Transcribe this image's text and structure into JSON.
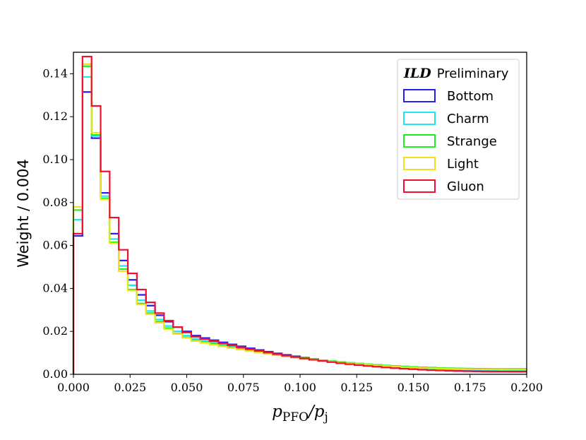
{
  "chart_data": {
    "type": "histogram-step",
    "title": "",
    "xlabel": {
      "main": "p",
      "sub": "PFO",
      "rest": "/p",
      "rest_sub": "j"
    },
    "ylabel": "Weight / 0.004",
    "xlim": [
      0.0,
      0.2
    ],
    "ylim": [
      0.0,
      0.15
    ],
    "bin_width": 0.004,
    "xticks": [
      "0.000",
      "0.025",
      "0.050",
      "0.075",
      "0.100",
      "0.125",
      "0.150",
      "0.175",
      "0.200"
    ],
    "xtick_values": [
      0.0,
      0.025,
      0.05,
      0.075,
      0.1,
      0.125,
      0.15,
      0.175,
      0.2
    ],
    "yticks": [
      "0.00",
      "0.02",
      "0.04",
      "0.06",
      "0.08",
      "0.10",
      "0.12",
      "0.14"
    ],
    "ytick_values": [
      0.0,
      0.02,
      0.04,
      0.06,
      0.08,
      0.1,
      0.12,
      0.14
    ],
    "legend": {
      "title_bold": "ILD",
      "title_rest": "Preliminary",
      "position": "top-right"
    },
    "series": [
      {
        "name": "Bottom",
        "color": "#2a1ee8",
        "head": [
          0.0645,
          0.1315,
          0.11,
          0.0845,
          0.0655,
          0.053,
          0.044,
          0.037,
          0.032,
          0.0275,
          0.0245,
          0.022,
          0.02
        ],
        "tail_start": 0.018,
        "tail_end": 0.0015
      },
      {
        "name": "Charm",
        "color": "#1ee6f2",
        "head": [
          0.072,
          0.1385,
          0.111,
          0.083,
          0.063,
          0.0505,
          0.0415,
          0.0345,
          0.0295,
          0.0255,
          0.0225,
          0.02,
          0.018
        ],
        "tail_start": 0.0165,
        "tail_end": 0.002
      },
      {
        "name": "Strange",
        "color": "#1ef01e",
        "head": [
          0.0765,
          0.1435,
          0.1115,
          0.082,
          0.0615,
          0.049,
          0.0395,
          0.033,
          0.0285,
          0.0245,
          0.0215,
          0.019,
          0.0172
        ],
        "tail_start": 0.0158,
        "tail_end": 0.0025
      },
      {
        "name": "Light",
        "color": "#f2e21e",
        "head": [
          0.078,
          0.1445,
          0.1125,
          0.0815,
          0.061,
          0.048,
          0.039,
          0.0325,
          0.028,
          0.024,
          0.021,
          0.0188,
          0.017
        ],
        "tail_start": 0.0155,
        "tail_end": 0.0022
      },
      {
        "name": "Gluon",
        "color": "#f2102e",
        "head": [
          0.0655,
          0.148,
          0.125,
          0.0945,
          0.073,
          0.058,
          0.047,
          0.0395,
          0.0335,
          0.0285,
          0.025,
          0.022,
          0.0195
        ],
        "tail_start": 0.0175,
        "tail_end": 0.0012
      }
    ]
  }
}
